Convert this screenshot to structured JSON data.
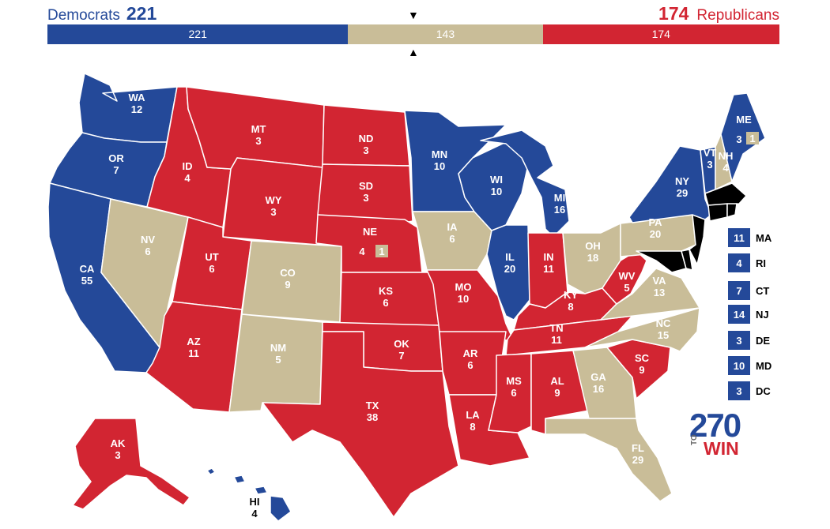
{
  "header": {
    "dem_name": "Democrats",
    "dem_total": "221",
    "rep_total": "174",
    "rep_name": "Republicans",
    "marker_top": "▼",
    "marker_bottom": "▲"
  },
  "bar": {
    "dem": {
      "value": 221,
      "label": "221"
    },
    "toss": {
      "value": 143,
      "label": "143"
    },
    "rep": {
      "value": 174,
      "label": "174"
    }
  },
  "colors": {
    "dem": "#244999",
    "rep": "#d22532",
    "tossup": "#c9bd98"
  },
  "states": [
    {
      "abbr": "WA",
      "ev": "12",
      "party": "dem"
    },
    {
      "abbr": "OR",
      "ev": "7",
      "party": "dem"
    },
    {
      "abbr": "CA",
      "ev": "55",
      "party": "dem"
    },
    {
      "abbr": "NV",
      "ev": "6",
      "party": "tossup"
    },
    {
      "abbr": "ID",
      "ev": "4",
      "party": "rep"
    },
    {
      "abbr": "MT",
      "ev": "3",
      "party": "rep"
    },
    {
      "abbr": "WY",
      "ev": "3",
      "party": "rep"
    },
    {
      "abbr": "UT",
      "ev": "6",
      "party": "rep"
    },
    {
      "abbr": "AZ",
      "ev": "11",
      "party": "rep"
    },
    {
      "abbr": "CO",
      "ev": "9",
      "party": "tossup"
    },
    {
      "abbr": "NM",
      "ev": "5",
      "party": "tossup"
    },
    {
      "abbr": "ND",
      "ev": "3",
      "party": "rep"
    },
    {
      "abbr": "SD",
      "ev": "3",
      "party": "rep"
    },
    {
      "abbr": "NE",
      "ev": "4",
      "party": "rep"
    },
    {
      "abbr": "KS",
      "ev": "6",
      "party": "rep"
    },
    {
      "abbr": "OK",
      "ev": "7",
      "party": "rep"
    },
    {
      "abbr": "TX",
      "ev": "38",
      "party": "rep"
    },
    {
      "abbr": "MN",
      "ev": "10",
      "party": "dem"
    },
    {
      "abbr": "IA",
      "ev": "6",
      "party": "tossup"
    },
    {
      "abbr": "MO",
      "ev": "10",
      "party": "rep"
    },
    {
      "abbr": "AR",
      "ev": "6",
      "party": "rep"
    },
    {
      "abbr": "LA",
      "ev": "8",
      "party": "rep"
    },
    {
      "abbr": "WI",
      "ev": "10",
      "party": "dem"
    },
    {
      "abbr": "IL",
      "ev": "20",
      "party": "dem"
    },
    {
      "abbr": "MI",
      "ev": "16",
      "party": "dem"
    },
    {
      "abbr": "IN",
      "ev": "11",
      "party": "rep"
    },
    {
      "abbr": "OH",
      "ev": "18",
      "party": "tossup"
    },
    {
      "abbr": "KY",
      "ev": "8",
      "party": "rep"
    },
    {
      "abbr": "TN",
      "ev": "11",
      "party": "rep"
    },
    {
      "abbr": "MS",
      "ev": "6",
      "party": "rep"
    },
    {
      "abbr": "AL",
      "ev": "9",
      "party": "rep"
    },
    {
      "abbr": "GA",
      "ev": "16",
      "party": "tossup"
    },
    {
      "abbr": "FL",
      "ev": "29",
      "party": "tossup"
    },
    {
      "abbr": "SC",
      "ev": "9",
      "party": "rep"
    },
    {
      "abbr": "NC",
      "ev": "15",
      "party": "tossup"
    },
    {
      "abbr": "VA",
      "ev": "13",
      "party": "tossup"
    },
    {
      "abbr": "WV",
      "ev": "5",
      "party": "rep"
    },
    {
      "abbr": "PA",
      "ev": "20",
      "party": "tossup"
    },
    {
      "abbr": "NY",
      "ev": "29",
      "party": "dem"
    },
    {
      "abbr": "VT",
      "ev": "3",
      "party": "dem"
    },
    {
      "abbr": "NH",
      "ev": "4",
      "party": "tossup"
    },
    {
      "abbr": "ME",
      "ev": "3",
      "party": "dem"
    },
    {
      "abbr": "AK",
      "ev": "3",
      "party": "rep"
    },
    {
      "abbr": "HI",
      "ev": "4",
      "party": "dem"
    }
  ],
  "districts": {
    "ne_cd": "1",
    "me_cd": "1"
  },
  "small_states": [
    {
      "ev": "11",
      "abbr": "MA"
    },
    {
      "ev": "4",
      "abbr": "RI"
    },
    {
      "ev": "7",
      "abbr": "CT"
    },
    {
      "ev": "14",
      "abbr": "NJ"
    },
    {
      "ev": "3",
      "abbr": "DE"
    },
    {
      "ev": "10",
      "abbr": "MD"
    },
    {
      "ev": "3",
      "abbr": "DC"
    }
  ],
  "logo": {
    "number": "270",
    "to": "TO",
    "win": "WIN"
  }
}
